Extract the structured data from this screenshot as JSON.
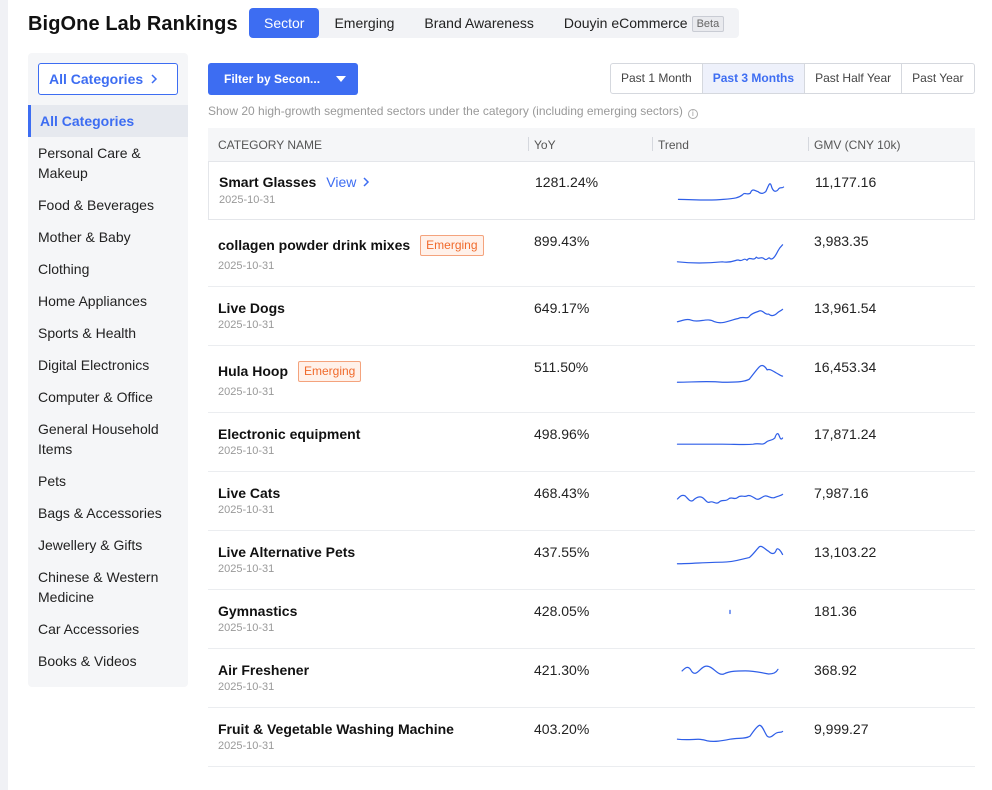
{
  "app": {
    "title": "BigOne Lab Rankings"
  },
  "tabs": [
    {
      "label": "Sector",
      "active": true
    },
    {
      "label": "Emerging",
      "active": false
    },
    {
      "label": "Brand Awareness",
      "active": false
    },
    {
      "label": "Douyin eCommerce",
      "active": false,
      "badge": "Beta"
    }
  ],
  "sidebar": {
    "all_button": "All Categories",
    "items": [
      "All Categories",
      "Personal Care & Makeup",
      "Food & Beverages",
      "Mother & Baby",
      "Clothing",
      "Home Appliances",
      "Sports & Health",
      "Digital Electronics",
      "Computer & Office",
      "General Household Items",
      "Pets",
      "Bags & Accessories",
      "Jewellery & Gifts",
      "Chinese & Western Medicine",
      "Car Accessories",
      "Books & Videos"
    ],
    "active_index": 0
  },
  "filter": {
    "label": "Filter by Secon..."
  },
  "periods": [
    {
      "label": "Past 1 Month",
      "active": false
    },
    {
      "label": "Past 3 Months",
      "active": true
    },
    {
      "label": "Past Half Year",
      "active": false
    },
    {
      "label": "Past Year",
      "active": false
    }
  ],
  "note": "Show 20 high-growth segmented sectors under the category (including emerging sectors)",
  "table": {
    "headers": {
      "name": "CATEGORY NAME",
      "yoy": "YoY",
      "trend": "Trend",
      "gmv": "GMV (CNY 10k)"
    },
    "view_label": "View",
    "rows": [
      {
        "name": "Smart Glasses",
        "date": "2025-10-31",
        "yoy": "1281.24%",
        "gmv": "11,177.16",
        "badge": "",
        "view": true
      },
      {
        "name": "collagen powder drink mixes",
        "date": "2025-10-31",
        "yoy": "899.43%",
        "gmv": "3,983.35",
        "badge": "Emerging",
        "view": false
      },
      {
        "name": "Live Dogs",
        "date": "2025-10-31",
        "yoy": "649.17%",
        "gmv": "13,961.54",
        "badge": "",
        "view": false
      },
      {
        "name": "Hula Hoop",
        "date": "2025-10-31",
        "yoy": "511.50%",
        "gmv": "16,453.34",
        "badge": "Emerging",
        "view": false
      },
      {
        "name": "Electronic equipment",
        "date": "2025-10-31",
        "yoy": "498.96%",
        "gmv": "17,871.24",
        "badge": "",
        "view": false
      },
      {
        "name": "Live Cats",
        "date": "2025-10-31",
        "yoy": "468.43%",
        "gmv": "7,987.16",
        "badge": "",
        "view": false
      },
      {
        "name": "Live Alternative Pets",
        "date": "2025-10-31",
        "yoy": "437.55%",
        "gmv": "13,103.22",
        "badge": "",
        "view": false
      },
      {
        "name": "Gymnastics",
        "date": "2025-10-31",
        "yoy": "428.05%",
        "gmv": "181.36",
        "badge": "",
        "view": false
      },
      {
        "name": "Air Freshener",
        "date": "2025-10-31",
        "yoy": "421.30%",
        "gmv": "368.92",
        "badge": "",
        "view": false
      },
      {
        "name": "Fruit & Vegetable Washing Machine",
        "date": "2025-10-31",
        "yoy": "403.20%",
        "gmv": "9,999.27",
        "badge": "",
        "view": false
      }
    ]
  },
  "colors": {
    "accent": "#3d6df2",
    "emerging": "#f06a2c",
    "trend_line": "#2f5fe8"
  }
}
